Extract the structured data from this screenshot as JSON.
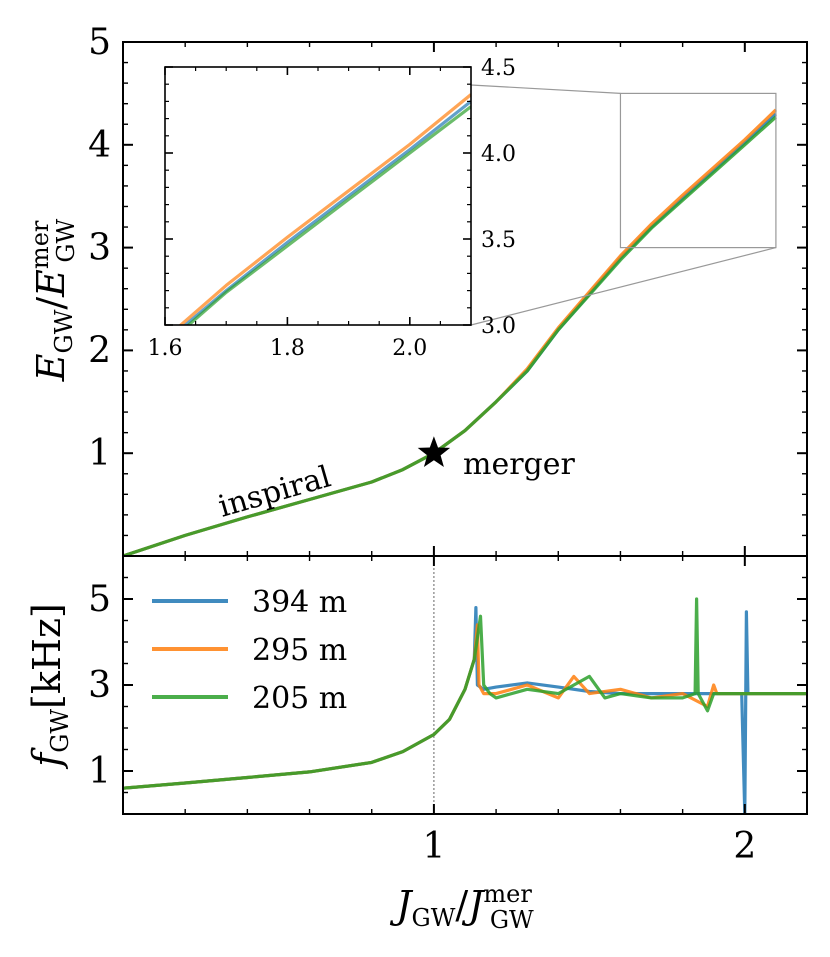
{
  "chart_data": [
    {
      "id": "top",
      "type": "line",
      "ylabel_main": "E",
      "ylabel_main_sub": "GW",
      "ylabel_den": "E",
      "ylabel_den_sub": "GW",
      "ylabel_den_sup": "mer",
      "ylabel_sep": "/",
      "xlim": [
        0,
        2.2
      ],
      "ylim": [
        0,
        5
      ],
      "yticks": [
        "1",
        "2",
        "3",
        "4",
        "5"
      ],
      "annotations": {
        "inspiral": "inspiral",
        "merger": "merger"
      },
      "merger_point": {
        "x": 1.0,
        "y": 1.0
      },
      "series": [
        {
          "name": "394 m",
          "color": "#1f77b4",
          "x": [
            0,
            0.2,
            0.4,
            0.6,
            0.8,
            0.9,
            1.0,
            1.1,
            1.2,
            1.3,
            1.4,
            1.5,
            1.6,
            1.7,
            1.8,
            1.9,
            2.0,
            2.1
          ],
          "y": [
            0,
            0.2,
            0.38,
            0.55,
            0.72,
            0.84,
            1.0,
            1.22,
            1.5,
            1.8,
            2.2,
            2.55,
            2.9,
            3.2,
            3.48,
            3.75,
            4.02,
            4.3
          ]
        },
        {
          "name": "295 m",
          "color": "#ff7f0e",
          "x": [
            0,
            0.2,
            0.4,
            0.6,
            0.8,
            0.9,
            1.0,
            1.1,
            1.2,
            1.3,
            1.4,
            1.5,
            1.6,
            1.7,
            1.8,
            1.9,
            2.0,
            2.1
          ],
          "y": [
            0,
            0.2,
            0.38,
            0.55,
            0.72,
            0.84,
            1.0,
            1.22,
            1.5,
            1.82,
            2.22,
            2.57,
            2.92,
            3.23,
            3.51,
            3.78,
            4.05,
            4.34
          ]
        },
        {
          "name": "205 m",
          "color": "#2ca02c",
          "x": [
            0,
            0.2,
            0.4,
            0.6,
            0.8,
            0.9,
            1.0,
            1.1,
            1.2,
            1.3,
            1.4,
            1.5,
            1.6,
            1.7,
            1.8,
            1.9,
            2.0,
            2.1
          ],
          "y": [
            0,
            0.2,
            0.38,
            0.55,
            0.72,
            0.84,
            1.0,
            1.22,
            1.5,
            1.8,
            2.2,
            2.54,
            2.88,
            3.19,
            3.46,
            3.73,
            4.0,
            4.27
          ]
        }
      ]
    },
    {
      "id": "inset",
      "type": "line",
      "xlim": [
        1.6,
        2.1
      ],
      "ylim": [
        3.0,
        4.5
      ],
      "xticks": [
        "1.6",
        "1.8",
        "2.0"
      ],
      "yticks": [
        "3.0",
        "3.5",
        "4.0",
        "4.5"
      ],
      "zoom_box": {
        "x": [
          1.6,
          2.1
        ],
        "y": [
          3.0,
          4.5
        ]
      }
    },
    {
      "id": "bottom",
      "type": "line",
      "ylabel_main": "f",
      "ylabel_sub": "GW",
      "ylabel_unit": "[kHz]",
      "xlabel_main": "J",
      "xlabel_main_sub": "GW",
      "xlabel_den": "J",
      "xlabel_den_sub": "GW",
      "xlabel_den_sup": "mer",
      "xlabel_sep": "/",
      "xlim": [
        0,
        2.2
      ],
      "ylim": [
        0,
        6
      ],
      "xticks": [
        "1",
        "2"
      ],
      "yticks": [
        "1",
        "3",
        "5"
      ],
      "vline_x": 1.0,
      "legend_placement": "upper-left",
      "legend": [
        "394 m",
        "295 m",
        "205 m"
      ],
      "series": [
        {
          "name": "394 m",
          "color": "#1f77b4",
          "x": [
            0,
            0.2,
            0.4,
            0.6,
            0.8,
            0.9,
            1.0,
            1.05,
            1.1,
            1.13,
            1.135,
            1.14,
            1.16,
            1.2,
            1.3,
            1.4,
            1.5,
            1.6,
            1.7,
            1.8,
            1.9,
            1.99,
            2.0,
            2.005,
            2.01,
            2.015,
            2.2
          ],
          "y": [
            0.6,
            0.72,
            0.85,
            0.98,
            1.2,
            1.45,
            1.85,
            2.2,
            2.9,
            3.6,
            4.8,
            3.0,
            2.9,
            2.95,
            3.05,
            2.95,
            2.85,
            2.8,
            2.8,
            2.8,
            2.8,
            2.8,
            0.0,
            4.7,
            2.8,
            2.8,
            2.8
          ]
        },
        {
          "name": "295 m",
          "color": "#ff7f0e",
          "x": [
            0,
            0.2,
            0.4,
            0.6,
            0.8,
            0.9,
            1.0,
            1.05,
            1.1,
            1.13,
            1.14,
            1.145,
            1.16,
            1.2,
            1.3,
            1.4,
            1.45,
            1.5,
            1.6,
            1.7,
            1.8,
            1.88,
            1.9,
            1.91,
            2.2
          ],
          "y": [
            0.6,
            0.72,
            0.85,
            0.98,
            1.2,
            1.45,
            1.85,
            2.2,
            2.9,
            3.6,
            4.4,
            3.0,
            2.8,
            2.8,
            3.0,
            2.7,
            3.2,
            2.8,
            2.9,
            2.7,
            2.8,
            2.5,
            3.0,
            2.8,
            2.8
          ]
        },
        {
          "name": "205 m",
          "color": "#2ca02c",
          "x": [
            0,
            0.2,
            0.4,
            0.6,
            0.8,
            0.9,
            1.0,
            1.05,
            1.1,
            1.13,
            1.15,
            1.16,
            1.18,
            1.2,
            1.3,
            1.4,
            1.5,
            1.55,
            1.6,
            1.7,
            1.8,
            1.84,
            1.845,
            1.85,
            1.88,
            1.9,
            2.2
          ],
          "y": [
            0.6,
            0.72,
            0.85,
            0.98,
            1.2,
            1.45,
            1.85,
            2.2,
            2.9,
            3.6,
            4.6,
            3.0,
            2.8,
            2.7,
            2.9,
            2.8,
            3.2,
            2.7,
            2.8,
            2.7,
            2.7,
            2.8,
            5.0,
            2.8,
            2.4,
            2.8,
            2.8
          ]
        }
      ]
    }
  ]
}
